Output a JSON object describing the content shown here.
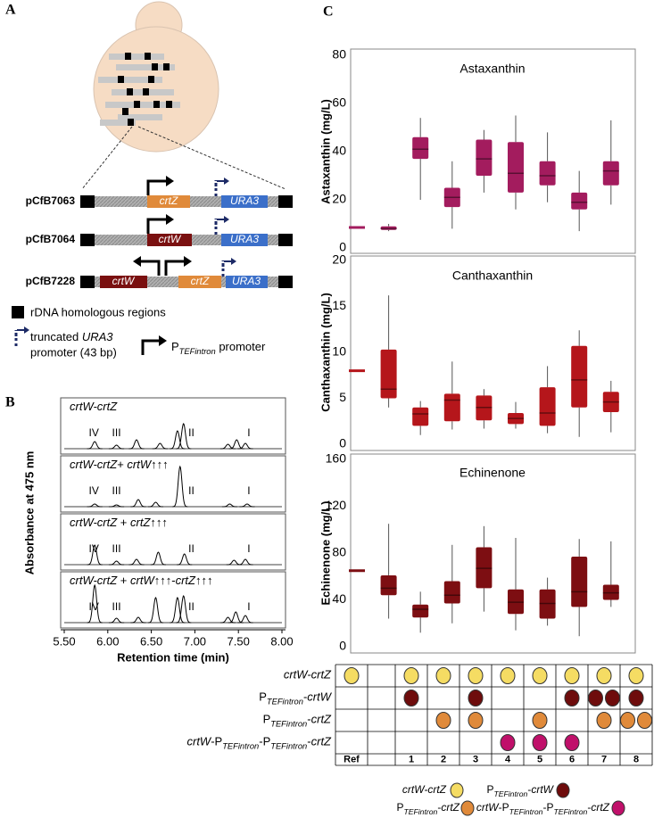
{
  "panel_labels": [
    "A",
    "B",
    "C"
  ],
  "panel_a": {
    "plasmids": [
      {
        "name": "pCfB7063",
        "genes": [
          "crtZ",
          "URA3"
        ]
      },
      {
        "name": "pCfB7064",
        "genes": [
          "crtW",
          "URA3"
        ]
      },
      {
        "name": "pCfB7228",
        "genes": [
          "crtW",
          "crtZ",
          "URA3"
        ]
      }
    ],
    "legend": {
      "rdna": "rDNA homologous regions",
      "ura3_line1": [
        {
          "text": "truncated "
        },
        {
          "text": "URA3",
          "style": "italic"
        }
      ],
      "ura3_line2": "promoter (43 bp)",
      "promoter": [
        {
          "text": "P"
        },
        {
          "text": "TEFintron",
          "style": "sub"
        },
        {
          "text": " promoter"
        }
      ]
    }
  },
  "chart_data": [
    {
      "type": "chromatogram",
      "xlabel": "Retention time (min)",
      "ylabel": "Absorbance at 475 nm",
      "xlim": [
        5.5,
        8.0
      ],
      "xticks": [
        {
          "value": 5.5,
          "label": "5.50"
        },
        {
          "value": 6.0,
          "label": "6.00"
        },
        {
          "value": 6.5,
          "label": "6.50"
        },
        {
          "value": 7.0,
          "label": "7.00"
        },
        {
          "value": 7.5,
          "label": "7.50"
        },
        {
          "value": 8.0,
          "label": "8.00"
        }
      ],
      "peak_labels": [
        "IV",
        "III",
        "II",
        "I"
      ],
      "series": [
        {
          "name": [
            {
              "text": "crtW-crtZ",
              "style": "italic"
            }
          ],
          "peaks_x": [
            5.85,
            6.1,
            6.33,
            6.6,
            6.8,
            6.87,
            7.38,
            7.48,
            7.58
          ],
          "peaks_h": [
            8,
            4,
            10,
            6,
            20,
            28,
            5,
            10,
            6
          ]
        },
        {
          "name": [
            {
              "text": "crtW-crtZ",
              "style": "italic"
            },
            {
              "text": "+ "
            },
            {
              "text": "crtW",
              "style": "italic"
            },
            {
              "text": "↑↑↑"
            }
          ],
          "peaks_x": [
            5.85,
            6.1,
            6.35,
            6.55,
            6.83,
            7.4,
            7.6
          ],
          "peaks_h": [
            3,
            2,
            8,
            5,
            45,
            3,
            3
          ]
        },
        {
          "name": [
            {
              "text": "crtW-crtZ",
              "style": "italic"
            },
            {
              "text": " + "
            },
            {
              "text": "crtZ",
              "style": "italic"
            },
            {
              "text": "↑↑↑"
            }
          ],
          "peaks_x": [
            5.85,
            6.1,
            6.33,
            6.58,
            6.88,
            7.45,
            7.58
          ],
          "peaks_h": [
            22,
            4,
            6,
            14,
            12,
            5,
            6
          ]
        },
        {
          "name": [
            {
              "text": "crtW-crtZ",
              "style": "italic"
            },
            {
              "text": " + "
            },
            {
              "text": "crtW",
              "style": "italic"
            },
            {
              "text": "↑↑↑-"
            },
            {
              "text": "crtZ",
              "style": "italic"
            },
            {
              "text": "↑↑↑"
            }
          ],
          "peaks_x": [
            5.85,
            6.1,
            6.35,
            6.55,
            6.8,
            6.87,
            7.38,
            7.47,
            7.58
          ],
          "peaks_h": [
            42,
            5,
            6,
            28,
            28,
            30,
            6,
            12,
            8
          ]
        }
      ]
    },
    {
      "type": "box",
      "title": "Astaxanthin",
      "ylabel": "Astaxanthin (mg/L)",
      "color": "#a31c5e",
      "ylim": [
        0,
        80
      ],
      "yticks": [
        0,
        20,
        40,
        60,
        80
      ],
      "categories": [
        "Ref",
        "1",
        "2",
        "3",
        "4",
        "5",
        "6",
        "7",
        "8"
      ],
      "min": [
        null,
        7,
        20,
        8,
        23,
        16,
        19,
        7,
        18
      ],
      "q1": [
        null,
        7.5,
        37,
        17,
        30,
        23,
        26,
        16,
        26
      ],
      "median": [
        8.5,
        8,
        41,
        21,
        37,
        31,
        30,
        19,
        32
      ],
      "q3": [
        null,
        9,
        46,
        25,
        45,
        44,
        36,
        23,
        36
      ],
      "max": [
        null,
        10,
        54,
        36,
        49,
        55,
        48,
        32,
        53
      ]
    },
    {
      "type": "box",
      "title": "Canthaxanthin",
      "ylabel": "Canthaxanthin (mg/L)",
      "color": "#b5161b",
      "ylim": [
        0,
        20
      ],
      "yticks": [
        0,
        5,
        10,
        15,
        20
      ],
      "categories": [
        "Ref",
        "1",
        "2",
        "3",
        "4",
        "5",
        "6",
        "7",
        "8"
      ],
      "min": [
        null,
        4,
        1,
        1.6,
        1.7,
        1.7,
        1.2,
        0.8,
        1.3
      ],
      "q1": [
        null,
        5,
        2,
        2.5,
        2.6,
        2.2,
        2,
        4,
        3.5
      ],
      "median": [
        8,
        6,
        3.3,
        4.8,
        4,
        2.8,
        3.4,
        7,
        4.6
      ],
      "q3": [
        null,
        10.3,
        4,
        5.5,
        5.3,
        3.4,
        6.2,
        10.7,
        5.7
      ],
      "max": [
        null,
        16.2,
        4.7,
        9,
        6,
        4.6,
        8.5,
        12.4,
        6.9
      ]
    },
    {
      "type": "box",
      "title": "Echinenone",
      "ylabel": "Echinenone (mg/L)",
      "color": "#7d0e12",
      "ylim": [
        0,
        160
      ],
      "yticks": [
        0,
        40,
        80,
        120,
        160
      ],
      "categories": [
        "Ref",
        "1",
        "2",
        "3",
        "4",
        "5",
        "6",
        "7",
        "8"
      ],
      "min": [
        null,
        24,
        12,
        20,
        30,
        14,
        18,
        9,
        34
      ],
      "q1": [
        null,
        44,
        25,
        37,
        50,
        28,
        24,
        34,
        40
      ],
      "median": [
        65,
        50,
        32,
        44,
        67,
        38,
        37,
        47,
        46
      ],
      "q3": [
        null,
        61,
        36,
        56,
        85,
        49,
        49,
        77,
        53
      ],
      "max": [
        null,
        105,
        47,
        87,
        103,
        93,
        59,
        92,
        90
      ]
    }
  ],
  "table": {
    "rows": [
      {
        "label": [
          {
            "text": "crtW-crtZ",
            "style": "italic"
          }
        ],
        "color": "#f5dc63",
        "counts": [
          1,
          1,
          1,
          1,
          1,
          1,
          1,
          1,
          1
        ]
      },
      {
        "label": [
          {
            "text": "P"
          },
          {
            "text": "TEFintron",
            "style": "sub"
          },
          {
            "text": "-"
          },
          {
            "text": "crtW",
            "style": "italic"
          }
        ],
        "color": "#6e0c0c",
        "counts": [
          0,
          1,
          0,
          1,
          0,
          0,
          1,
          2,
          1
        ]
      },
      {
        "label": [
          {
            "text": "P"
          },
          {
            "text": "TEFintron",
            "style": "sub"
          },
          {
            "text": "-"
          },
          {
            "text": "crtZ",
            "style": "italic"
          }
        ],
        "color": "#e08a3a",
        "counts": [
          0,
          0,
          1,
          1,
          0,
          1,
          0,
          1,
          2
        ]
      },
      {
        "label": [
          {
            "text": "crtW",
            "style": "italic"
          },
          {
            "text": "-P"
          },
          {
            "text": "TEFintron",
            "style": "sub"
          },
          {
            "text": "-P"
          },
          {
            "text": "TEFintron",
            "style": "sub"
          },
          {
            "text": "-"
          },
          {
            "text": "crtZ",
            "style": "italic"
          }
        ],
        "color": "#c0106a",
        "counts": [
          0,
          0,
          0,
          0,
          1,
          1,
          1,
          0,
          0
        ]
      }
    ]
  }
}
